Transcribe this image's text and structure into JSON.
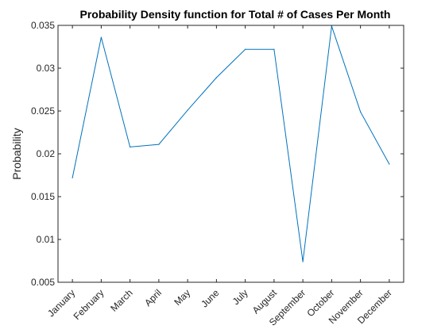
{
  "chart_data": {
    "type": "line",
    "title": "Probability Density function for Total # of Cases Per Month",
    "xlabel": "",
    "ylabel": "Probability",
    "categories": [
      "January",
      "February",
      "March",
      "April",
      "May",
      "June",
      "July",
      "August",
      "September",
      "October",
      "November",
      "December"
    ],
    "series": [
      {
        "values": [
          0.0172,
          0.0336,
          0.0208,
          0.0211,
          0.0251,
          0.0289,
          0.0322,
          0.0322,
          0.0074,
          0.0349,
          0.0249,
          0.0188
        ],
        "color": "#0072BD"
      }
    ],
    "ylim": [
      0.005,
      0.035
    ],
    "yticks": [
      "0.005",
      "0.01",
      "0.015",
      "0.02",
      "0.025",
      "0.03",
      "0.035"
    ],
    "grid": false,
    "legend": "none"
  }
}
